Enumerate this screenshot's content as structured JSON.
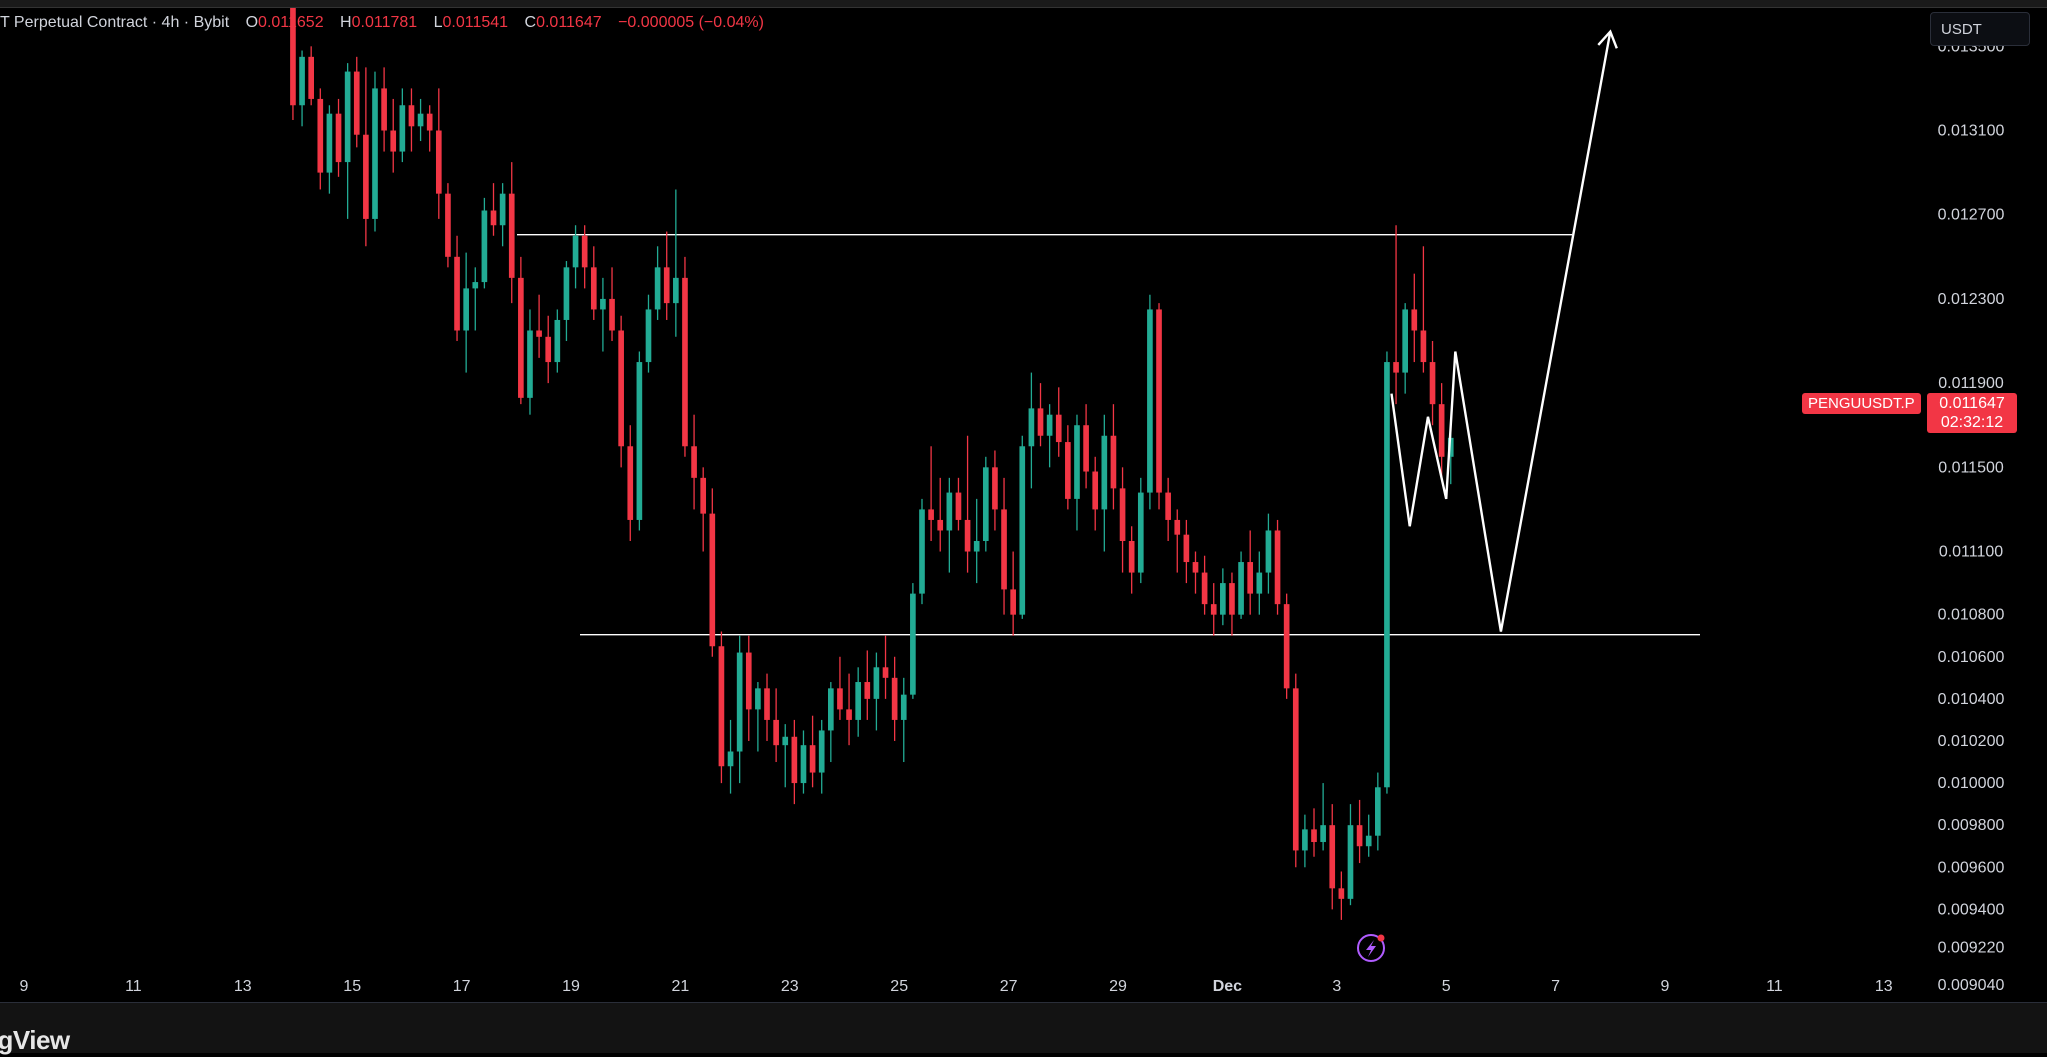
{
  "header": {
    "title_prefix": "T Perpetual Contract · 4h · Bybit",
    "open_label": "O",
    "open": "0.011652",
    "high_label": "H",
    "high": "0.011781",
    "low_label": "L",
    "low": "0.011541",
    "close_label": "C",
    "close": "0.011647",
    "change": "−0.000005 (−0.04%)"
  },
  "currency": "USDT",
  "price_tag": {
    "symbol": "PENGUUSDT.P",
    "price": "0.011647",
    "countdown": "02:32:12"
  },
  "footer": {
    "brand": "dingView"
  },
  "colors": {
    "up": "#22ab94",
    "down": "#f23645",
    "bg": "#000000",
    "drawing": "#ffffff"
  },
  "chart_data": {
    "type": "candlestick",
    "xaxis_ticks": [
      "9",
      "11",
      "13",
      "15",
      "17",
      "19",
      "21",
      "23",
      "25",
      "27",
      "29",
      "Dec",
      "3",
      "5",
      "7",
      "9",
      "11",
      "13"
    ],
    "yaxis_ticks": [
      "0.013500",
      "0.013100",
      "0.012700",
      "0.012300",
      "0.011900",
      "0.011500",
      "0.011100",
      "0.010800",
      "0.010600",
      "0.010400",
      "0.010200",
      "0.010000",
      "0.009800",
      "0.009600",
      "0.009400",
      "0.009220",
      "0.009040"
    ],
    "ylim": [
      0.00896,
      0.01372
    ],
    "horizontal_lines": [
      0.012605,
      0.010705
    ],
    "projection_path": [
      [
        "Dec 4 00:00",
        0.01185
      ],
      [
        "Dec 4 08:00",
        0.01122
      ],
      [
        "Dec 4 16:00",
        0.01174
      ],
      [
        "Dec 5 00:00",
        0.01135
      ],
      [
        "Dec 5 04:00",
        0.01205
      ],
      [
        "Dec 6 00:00",
        0.01072
      ],
      [
        "Dec 8 00:00",
        0.01357
      ]
    ],
    "candles_start": "Nov 13 20:00",
    "candles_interval": "4h",
    "candles": [
      [
        0.01372,
        0.01372,
        0.01315,
        0.01322
      ],
      [
        0.01322,
        0.01348,
        0.01312,
        0.01345
      ],
      [
        0.01345,
        0.0135,
        0.01322,
        0.01325
      ],
      [
        0.01325,
        0.0133,
        0.01282,
        0.0129
      ],
      [
        0.0129,
        0.01322,
        0.0128,
        0.01318
      ],
      [
        0.01318,
        0.01325,
        0.01288,
        0.01295
      ],
      [
        0.01295,
        0.01342,
        0.01268,
        0.01338
      ],
      [
        0.01338,
        0.01345,
        0.01302,
        0.01308
      ],
      [
        0.01308,
        0.0134,
        0.01255,
        0.01268
      ],
      [
        0.01268,
        0.01338,
        0.01262,
        0.0133
      ],
      [
        0.0133,
        0.0134,
        0.013,
        0.0131
      ],
      [
        0.0131,
        0.01325,
        0.0129,
        0.013
      ],
      [
        0.013,
        0.0133,
        0.01295,
        0.01322
      ],
      [
        0.01322,
        0.0133,
        0.013,
        0.01312
      ],
      [
        0.01312,
        0.01325,
        0.01305,
        0.01318
      ],
      [
        0.01318,
        0.01322,
        0.013,
        0.0131
      ],
      [
        0.0131,
        0.0133,
        0.01268,
        0.0128
      ],
      [
        0.0128,
        0.01285,
        0.01245,
        0.0125
      ],
      [
        0.0125,
        0.0126,
        0.0121,
        0.01215
      ],
      [
        0.01215,
        0.01252,
        0.01195,
        0.01235
      ],
      [
        0.01235,
        0.01245,
        0.01215,
        0.01238
      ],
      [
        0.01238,
        0.01278,
        0.01235,
        0.01272
      ],
      [
        0.01272,
        0.01285,
        0.0126,
        0.01265
      ],
      [
        0.01265,
        0.01285,
        0.01255,
        0.0128
      ],
      [
        0.0128,
        0.01295,
        0.01228,
        0.0124
      ],
      [
        0.0124,
        0.0125,
        0.0118,
        0.01183
      ],
      [
        0.01183,
        0.01225,
        0.01175,
        0.01215
      ],
      [
        0.01215,
        0.01232,
        0.01202,
        0.01212
      ],
      [
        0.01212,
        0.01222,
        0.0119,
        0.012
      ],
      [
        0.012,
        0.01225,
        0.01195,
        0.0122
      ],
      [
        0.0122,
        0.01248,
        0.0121,
        0.01245
      ],
      [
        0.01245,
        0.01265,
        0.01235,
        0.0126
      ],
      [
        0.0126,
        0.01265,
        0.01235,
        0.01245
      ],
      [
        0.01245,
        0.01255,
        0.0122,
        0.01225
      ],
      [
        0.01225,
        0.0124,
        0.01205,
        0.0123
      ],
      [
        0.0123,
        0.01245,
        0.0121,
        0.01215
      ],
      [
        0.01215,
        0.01222,
        0.0115,
        0.0116
      ],
      [
        0.0116,
        0.0117,
        0.01115,
        0.01125
      ],
      [
        0.01125,
        0.01205,
        0.0112,
        0.012
      ],
      [
        0.012,
        0.01232,
        0.01195,
        0.01225
      ],
      [
        0.01225,
        0.01255,
        0.0122,
        0.01245
      ],
      [
        0.01245,
        0.01262,
        0.0122,
        0.01228
      ],
      [
        0.01228,
        0.01282,
        0.01212,
        0.0124
      ],
      [
        0.0124,
        0.0125,
        0.01155,
        0.0116
      ],
      [
        0.0116,
        0.01175,
        0.0113,
        0.01145
      ],
      [
        0.01145,
        0.0115,
        0.0111,
        0.01128
      ],
      [
        0.01128,
        0.0114,
        0.0106,
        0.01065
      ],
      [
        0.01065,
        0.01072,
        0.01,
        0.01008
      ],
      [
        0.01008,
        0.0103,
        0.00995,
        0.01015
      ],
      [
        0.01015,
        0.0107,
        0.01,
        0.01062
      ],
      [
        0.01062,
        0.0107,
        0.0102,
        0.01035
      ],
      [
        0.01035,
        0.01048,
        0.01015,
        0.01045
      ],
      [
        0.01045,
        0.01052,
        0.0102,
        0.0103
      ],
      [
        0.0103,
        0.01045,
        0.0101,
        0.01018
      ],
      [
        0.01018,
        0.01028,
        0.00998,
        0.01022
      ],
      [
        0.01022,
        0.0103,
        0.0099,
        0.01
      ],
      [
        0.01,
        0.01025,
        0.00995,
        0.01018
      ],
      [
        0.01018,
        0.01032,
        0.00998,
        0.01005
      ],
      [
        0.01005,
        0.0103,
        0.00995,
        0.01025
      ],
      [
        0.01025,
        0.01048,
        0.0101,
        0.01045
      ],
      [
        0.01045,
        0.0106,
        0.0103,
        0.01035
      ],
      [
        0.01035,
        0.01052,
        0.01018,
        0.0103
      ],
      [
        0.0103,
        0.01055,
        0.01022,
        0.01048
      ],
      [
        0.01048,
        0.01063,
        0.0103,
        0.0104
      ],
      [
        0.0104,
        0.01062,
        0.01025,
        0.01055
      ],
      [
        0.01055,
        0.0107,
        0.0104,
        0.0105
      ],
      [
        0.0105,
        0.0106,
        0.0102,
        0.0103
      ],
      [
        0.0103,
        0.0105,
        0.0101,
        0.01042
      ],
      [
        0.01042,
        0.01095,
        0.0104,
        0.0109
      ],
      [
        0.0109,
        0.01135,
        0.01085,
        0.0113
      ],
      [
        0.0113,
        0.0116,
        0.01115,
        0.01125
      ],
      [
        0.01125,
        0.01145,
        0.0111,
        0.0112
      ],
      [
        0.0112,
        0.01145,
        0.011,
        0.01138
      ],
      [
        0.01138,
        0.01145,
        0.0112,
        0.01125
      ],
      [
        0.01125,
        0.01165,
        0.011,
        0.0111
      ],
      [
        0.0111,
        0.01135,
        0.01095,
        0.01115
      ],
      [
        0.01115,
        0.01155,
        0.0111,
        0.0115
      ],
      [
        0.0115,
        0.01158,
        0.0112,
        0.0113
      ],
      [
        0.0113,
        0.01145,
        0.0108,
        0.01092
      ],
      [
        0.01092,
        0.0111,
        0.0107,
        0.0108
      ],
      [
        0.0108,
        0.01165,
        0.01078,
        0.0116
      ],
      [
        0.0116,
        0.01195,
        0.0114,
        0.01178
      ],
      [
        0.01178,
        0.0119,
        0.0116,
        0.01165
      ],
      [
        0.01165,
        0.0118,
        0.0115,
        0.01175
      ],
      [
        0.01175,
        0.01188,
        0.01155,
        0.01162
      ],
      [
        0.01162,
        0.0117,
        0.0113,
        0.01135
      ],
      [
        0.01135,
        0.01175,
        0.0112,
        0.0117
      ],
      [
        0.0117,
        0.0118,
        0.0114,
        0.01148
      ],
      [
        0.01148,
        0.01155,
        0.0112,
        0.0113
      ],
      [
        0.0113,
        0.01175,
        0.0111,
        0.01165
      ],
      [
        0.01165,
        0.0118,
        0.0113,
        0.0114
      ],
      [
        0.0114,
        0.0115,
        0.011,
        0.01115
      ],
      [
        0.01115,
        0.01122,
        0.0109,
        0.011
      ],
      [
        0.011,
        0.01145,
        0.01095,
        0.01138
      ],
      [
        0.01138,
        0.01232,
        0.0113,
        0.01225
      ],
      [
        0.01225,
        0.01228,
        0.0113,
        0.01138
      ],
      [
        0.01138,
        0.01145,
        0.01115,
        0.01125
      ],
      [
        0.01125,
        0.0113,
        0.011,
        0.01118
      ],
      [
        0.01118,
        0.01125,
        0.01095,
        0.01105
      ],
      [
        0.01105,
        0.0111,
        0.0109,
        0.011
      ],
      [
        0.011,
        0.01108,
        0.0108,
        0.01085
      ],
      [
        0.01085,
        0.01095,
        0.0107,
        0.0108
      ],
      [
        0.0108,
        0.01102,
        0.01075,
        0.01095
      ],
      [
        0.01095,
        0.011,
        0.0107,
        0.0108
      ],
      [
        0.0108,
        0.0111,
        0.01078,
        0.01105
      ],
      [
        0.01105,
        0.0112,
        0.0108,
        0.0109
      ],
      [
        0.0109,
        0.0111,
        0.0108,
        0.011
      ],
      [
        0.011,
        0.01128,
        0.0109,
        0.0112
      ],
      [
        0.0112,
        0.01125,
        0.0108,
        0.01085
      ],
      [
        0.01085,
        0.0109,
        0.0104,
        0.01045
      ],
      [
        0.01045,
        0.01052,
        0.0096,
        0.00968
      ],
      [
        0.00968,
        0.00985,
        0.0096,
        0.00978
      ],
      [
        0.00978,
        0.00988,
        0.00965,
        0.00972
      ],
      [
        0.00972,
        0.01,
        0.00968,
        0.0098
      ],
      [
        0.0098,
        0.0099,
        0.0094,
        0.0095
      ],
      [
        0.0095,
        0.00958,
        0.00935,
        0.00945
      ],
      [
        0.00945,
        0.0099,
        0.00942,
        0.0098
      ],
      [
        0.0098,
        0.00992,
        0.00962,
        0.0097
      ],
      [
        0.0097,
        0.00985,
        0.00965,
        0.00975
      ],
      [
        0.00975,
        0.01005,
        0.00968,
        0.00998
      ],
      [
        0.00998,
        0.01205,
        0.00995,
        0.012
      ],
      [
        0.012,
        0.01265,
        0.0118,
        0.01195
      ],
      [
        0.01195,
        0.01228,
        0.01185,
        0.01225
      ],
      [
        0.01225,
        0.01242,
        0.012,
        0.01215
      ],
      [
        0.01215,
        0.01255,
        0.01195,
        0.012
      ],
      [
        0.012,
        0.0121,
        0.0117,
        0.0118
      ],
      [
        0.0118,
        0.0119,
        0.01145,
        0.01155
      ],
      [
        0.01155,
        0.01168,
        0.01142,
        0.01164
      ]
    ]
  }
}
